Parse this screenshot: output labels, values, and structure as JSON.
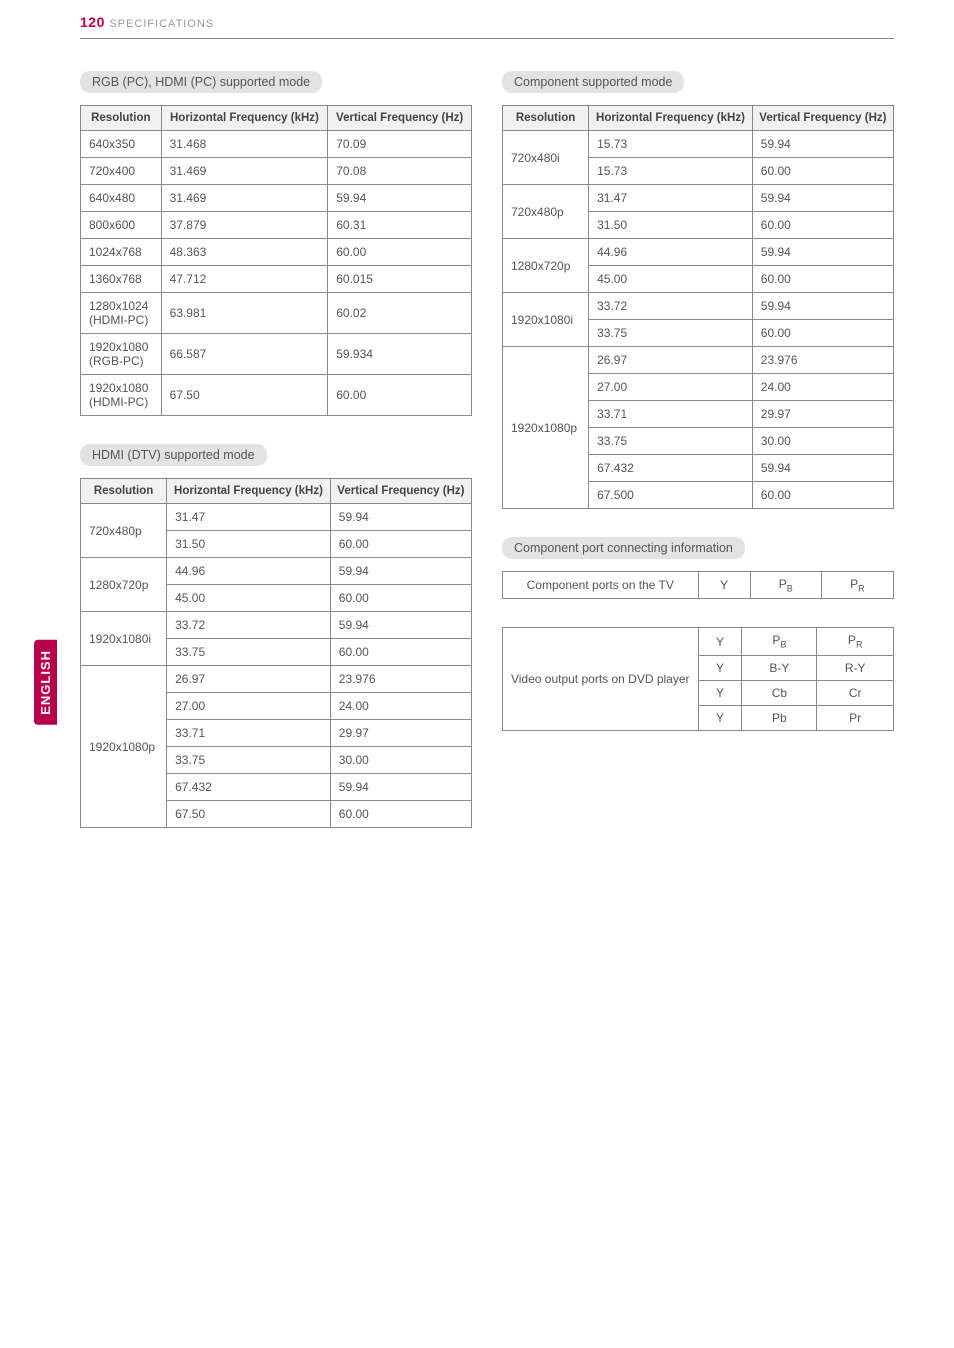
{
  "header": {
    "page_number": "120",
    "title": "SPECIFICATIONS"
  },
  "side_tab": "ENGLISH",
  "sections": {
    "rgb_hdmi_pc": {
      "title": "RGB (PC), HDMI (PC) supported mode",
      "columns": [
        "Resolution",
        "Horizontal Frequency (kHz)",
        "Vertical Frequency (Hz)"
      ],
      "rows": [
        [
          "640x350",
          "31.468",
          "70.09"
        ],
        [
          "720x400",
          "31.469",
          "70.08"
        ],
        [
          "640x480",
          "31.469",
          "59.94"
        ],
        [
          "800x600",
          "37.879",
          "60.31"
        ],
        [
          "1024x768",
          "48.363",
          "60.00"
        ],
        [
          "1360x768",
          "47.712",
          "60.015"
        ],
        [
          "1280x1024 (HDMI-PC)",
          "63.981",
          "60.02"
        ],
        [
          "1920x1080 (RGB-PC)",
          "66.587",
          "59.934"
        ],
        [
          "1920x1080 (HDMI-PC)",
          "67.50",
          "60.00"
        ]
      ]
    },
    "hdmi_dtv": {
      "title": "HDMI (DTV) supported mode",
      "columns": [
        "Resolution",
        "Horizontal Frequency (kHz)",
        "Vertical Frequency (Hz)"
      ],
      "groups": [
        {
          "res": "720x480p",
          "vals": [
            [
              "31.47",
              "59.94"
            ],
            [
              "31.50",
              "60.00"
            ]
          ]
        },
        {
          "res": "1280x720p",
          "vals": [
            [
              "44.96",
              "59.94"
            ],
            [
              "45.00",
              "60.00"
            ]
          ]
        },
        {
          "res": "1920x1080i",
          "vals": [
            [
              "33.72",
              "59.94"
            ],
            [
              "33.75",
              "60.00"
            ]
          ]
        },
        {
          "res": "1920x1080p",
          "vals": [
            [
              "26.97",
              "23.976"
            ],
            [
              "27.00",
              "24.00"
            ],
            [
              "33.71",
              "29.97"
            ],
            [
              "33.75",
              "30.00"
            ],
            [
              "67.432",
              "59.94"
            ],
            [
              "67.50",
              "60.00"
            ]
          ]
        }
      ]
    },
    "component_mode": {
      "title": "Component supported mode",
      "columns": [
        "Resolution",
        "Horizontal Frequency (kHz)",
        "Vertical Frequency (Hz)"
      ],
      "groups": [
        {
          "res": "720x480i",
          "vals": [
            [
              "15.73",
              "59.94"
            ],
            [
              "15.73",
              "60.00"
            ]
          ]
        },
        {
          "res": "720x480p",
          "vals": [
            [
              "31.47",
              "59.94"
            ],
            [
              "31.50",
              "60.00"
            ]
          ]
        },
        {
          "res": "1280x720p",
          "vals": [
            [
              "44.96",
              "59.94"
            ],
            [
              "45.00",
              "60.00"
            ]
          ]
        },
        {
          "res": "1920x1080i",
          "vals": [
            [
              "33.72",
              "59.94"
            ],
            [
              "33.75",
              "60.00"
            ]
          ]
        },
        {
          "res": "1920x1080p",
          "vals": [
            [
              "26.97",
              "23.976"
            ],
            [
              "27.00",
              "24.00"
            ],
            [
              "33.71",
              "29.97"
            ],
            [
              "33.75",
              "30.00"
            ],
            [
              "67.432",
              "59.94"
            ],
            [
              "67.500",
              "60.00"
            ]
          ]
        }
      ]
    },
    "component_port": {
      "title": "Component port connecting information",
      "tv_label": "Component ports on the TV",
      "tv_row": [
        "Y",
        "P_B",
        "P_R"
      ],
      "dvd_label": "Video output ports on DVD player",
      "dvd_rows": [
        [
          "Y",
          "P_B",
          "P_R"
        ],
        [
          "Y",
          "B-Y",
          "R-Y"
        ],
        [
          "Y",
          "Cb",
          "Cr"
        ],
        [
          "Y",
          "Pb",
          "Pr"
        ]
      ]
    }
  },
  "colors": {
    "accent": "#b9004b",
    "header_gray": "#999",
    "chip_bg": "#e3e3e3",
    "th_bg": "#f1f1f1",
    "border": "#888",
    "text": "#555"
  }
}
